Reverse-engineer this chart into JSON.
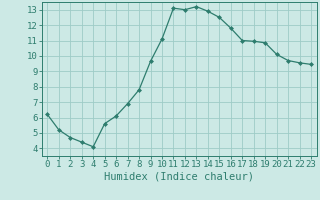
{
  "x": [
    0,
    1,
    2,
    3,
    4,
    5,
    6,
    7,
    8,
    9,
    10,
    11,
    12,
    13,
    14,
    15,
    16,
    17,
    18,
    19,
    20,
    21,
    22,
    23
  ],
  "y": [
    6.2,
    5.2,
    4.7,
    4.4,
    4.1,
    5.6,
    6.1,
    6.9,
    7.8,
    9.65,
    11.1,
    13.1,
    13.0,
    13.2,
    12.9,
    12.5,
    11.8,
    11.0,
    10.95,
    10.85,
    10.1,
    9.7,
    9.55,
    9.45
  ],
  "line_color": "#2e7d6e",
  "marker": "D",
  "marker_size": 2.0,
  "bg_color": "#cce9e5",
  "grid_color": "#9eccc7",
  "xlabel": "Humidex (Indice chaleur)",
  "xlim": [
    -0.5,
    23.5
  ],
  "ylim": [
    3.5,
    13.5
  ],
  "xticks": [
    0,
    1,
    2,
    3,
    4,
    5,
    6,
    7,
    8,
    9,
    10,
    11,
    12,
    13,
    14,
    15,
    16,
    17,
    18,
    19,
    20,
    21,
    22,
    23
  ],
  "yticks": [
    4,
    5,
    6,
    7,
    8,
    9,
    10,
    11,
    12,
    13
  ],
  "xlabel_fontsize": 7.5,
  "tick_fontsize": 6.5,
  "line_width": 0.9
}
